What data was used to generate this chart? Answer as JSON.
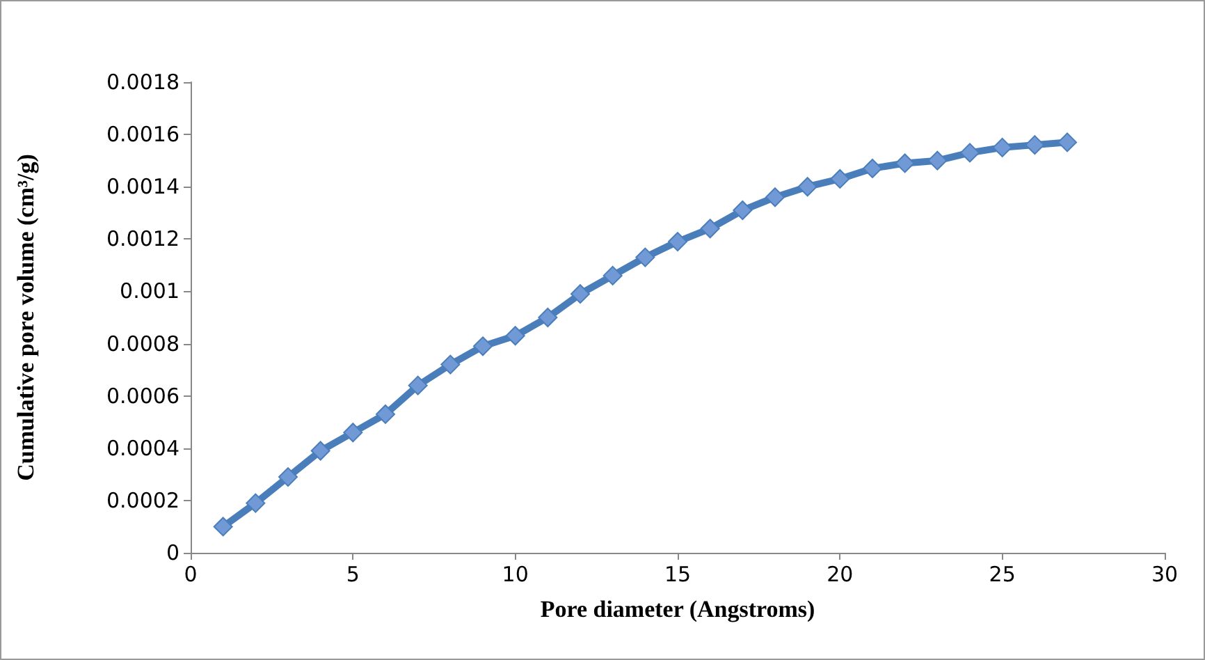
{
  "chart_data": {
    "type": "line",
    "xlabel": "Pore diameter (Angstroms)",
    "ylabel": "Cumulative pore volume (cm³/g)",
    "x": [
      1,
      2,
      3,
      4,
      5,
      6,
      7,
      8,
      9,
      10,
      11,
      12,
      13,
      14,
      15,
      16,
      17,
      18,
      19,
      20,
      21,
      22,
      23,
      24,
      25,
      26,
      27
    ],
    "series": [
      {
        "color": "#4a7ebb",
        "values": [
          0.0001,
          0.00019,
          0.00029,
          0.00039,
          0.00046,
          0.00053,
          0.00064,
          0.00072,
          0.00079,
          0.00083,
          0.0009,
          0.00099,
          0.00106,
          0.00113,
          0.00119,
          0.00124,
          0.00131,
          0.00136,
          0.0014,
          0.00143,
          0.00147,
          0.00149,
          0.0015,
          0.00153,
          0.00155,
          0.00156,
          0.00157
        ]
      }
    ],
    "xlim": [
      0,
      30
    ],
    "xticks": [
      0,
      5,
      10,
      15,
      20,
      25,
      30
    ],
    "ylim": [
      0,
      0.0018
    ],
    "yticks": [
      0,
      0.0002,
      0.0004,
      0.0006,
      0.0008,
      0.001,
      0.0012,
      0.0014,
      0.0016,
      0.0018
    ],
    "grid": false,
    "marker": "diamond",
    "line_style": "solid"
  }
}
